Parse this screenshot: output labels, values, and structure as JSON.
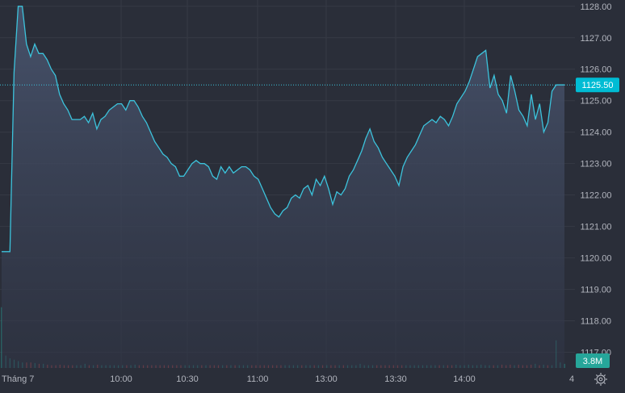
{
  "chart_data": {
    "type": "area",
    "colors": {
      "background": "#2a2e39",
      "grid": "#363a45",
      "line": "#3cc3dc",
      "volume_up": "#26a69a",
      "volume_down": "#ef5350",
      "last_price_badge": "#00bcd4",
      "volume_badge": "#26a69a",
      "axis_text": "#b2b5be"
    },
    "x_axis": {
      "ticks": [
        "Tháng 7",
        "10:00",
        "10:30",
        "11:00",
        "13:00",
        "13:30",
        "14:00",
        "4"
      ],
      "settings_icon": "gear-icon"
    },
    "y_axis": {
      "ticks": [
        "1128.00",
        "1127.00",
        "1126.00",
        "1125.00",
        "1124.00",
        "1123.00",
        "1122.00",
        "1121.00",
        "1120.00",
        "1119.00",
        "1118.00",
        "1117.00"
      ],
      "ylim": [
        1116.5,
        1128.2
      ],
      "log_scale": false
    },
    "grid": true,
    "last_price": {
      "label": "1125.50",
      "value": 1125.5
    },
    "volume_label": "3.8M",
    "series": [
      {
        "values": [
          1120.2,
          1120.2,
          1120.2,
          1125.9,
          1128.0,
          1128.0,
          1126.8,
          1126.4,
          1126.8,
          1126.5,
          1126.5,
          1126.3,
          1126.0,
          1125.8,
          1125.2,
          1124.9,
          1124.7,
          1124.4,
          1124.4,
          1124.4,
          1124.5,
          1124.3,
          1124.6,
          1124.1,
          1124.4,
          1124.5,
          1124.7,
          1124.8,
          1124.9,
          1124.9,
          1124.7,
          1125.0,
          1125.0,
          1124.8,
          1124.5,
          1124.3,
          1124.0,
          1123.7,
          1123.5,
          1123.3,
          1123.2,
          1123.0,
          1122.9,
          1122.6,
          1122.6,
          1122.8,
          1123.0,
          1123.1,
          1123.0,
          1123.0,
          1122.9,
          1122.6,
          1122.5,
          1122.9,
          1122.7,
          1122.9,
          1122.7,
          1122.8,
          1122.9,
          1122.9,
          1122.8,
          1122.6,
          1122.5,
          1122.2,
          1121.9,
          1121.6,
          1121.4,
          1121.3,
          1121.5,
          1121.6,
          1121.9,
          1122.0,
          1121.9,
          1122.2,
          1122.3,
          1122.0,
          1122.5,
          1122.3,
          1122.6,
          1122.2,
          1121.7,
          1122.1,
          1122.0,
          1122.2,
          1122.6,
          1122.8,
          1123.1,
          1123.4,
          1123.8,
          1124.1,
          1123.7,
          1123.5,
          1123.2,
          1123.0,
          1122.8,
          1122.6,
          1122.3,
          1122.9,
          1123.2,
          1123.4,
          1123.6,
          1123.9,
          1124.2,
          1124.3,
          1124.4,
          1124.3,
          1124.5,
          1124.4,
          1124.2,
          1124.5,
          1124.9,
          1125.1,
          1125.3,
          1125.6,
          1126.0,
          1126.4,
          1126.5,
          1126.6,
          1125.4,
          1125.8,
          1125.2,
          1125.0,
          1124.6,
          1125.8,
          1125.3,
          1124.7,
          1124.5,
          1124.2,
          1125.2,
          1124.4,
          1124.9,
          1124.0,
          1124.3,
          1125.3,
          1125.5,
          1125.5,
          1125.5
        ],
        "x_range_label": "Tháng 7 to 14:00"
      }
    ],
    "volume_values_m": [
      2.2,
      0.45,
      0.35,
      0.3,
      0.25,
      0.2,
      0.2,
      0.2,
      0.18,
      0.15,
      0.15,
      0.12,
      0.1,
      0.1,
      0.12,
      0.1,
      0.1,
      0.1,
      0.1,
      0.1,
      0.15,
      0.1,
      0.1,
      0.12,
      0.1,
      0.1,
      0.1,
      0.1,
      0.1,
      0.1,
      0.1,
      0.1,
      0.12,
      0.1,
      0.1,
      0.1,
      0.1,
      0.1,
      0.1,
      0.1,
      0.1,
      0.1,
      0.1,
      0.1,
      0.1,
      0.1,
      0.1,
      0.1,
      0.1,
      0.1,
      0.1,
      0.1,
      0.1,
      0.1,
      0.1,
      0.1,
      0.1,
      0.1,
      0.1,
      0.1,
      0.1,
      0.1,
      0.1,
      0.1,
      0.1,
      0.1,
      0.1,
      0.1,
      0.1,
      0.1,
      0.1,
      0.1,
      0.1,
      0.1,
      0.1,
      0.1,
      0.1,
      0.1,
      0.1,
      0.1,
      0.1,
      0.1,
      0.1,
      0.1,
      0.1,
      0.1,
      0.15,
      0.1,
      0.1,
      0.1,
      0.1,
      0.1,
      0.1,
      0.1,
      0.1,
      0.1,
      0.1,
      0.1,
      0.1,
      0.1,
      0.1,
      0.1,
      0.1,
      0.1,
      0.1,
      0.1,
      0.1,
      0.1,
      0.1,
      0.12,
      0.1,
      0.1,
      0.12,
      0.1,
      0.1,
      0.12,
      0.1,
      0.1,
      0.1,
      0.1,
      0.12,
      0.1,
      0.12,
      0.1,
      0.12,
      0.1,
      0.1,
      0.12,
      0.15,
      0.1,
      0.12,
      0.1,
      0.1,
      1.0,
      0.2,
      0.15
    ]
  }
}
